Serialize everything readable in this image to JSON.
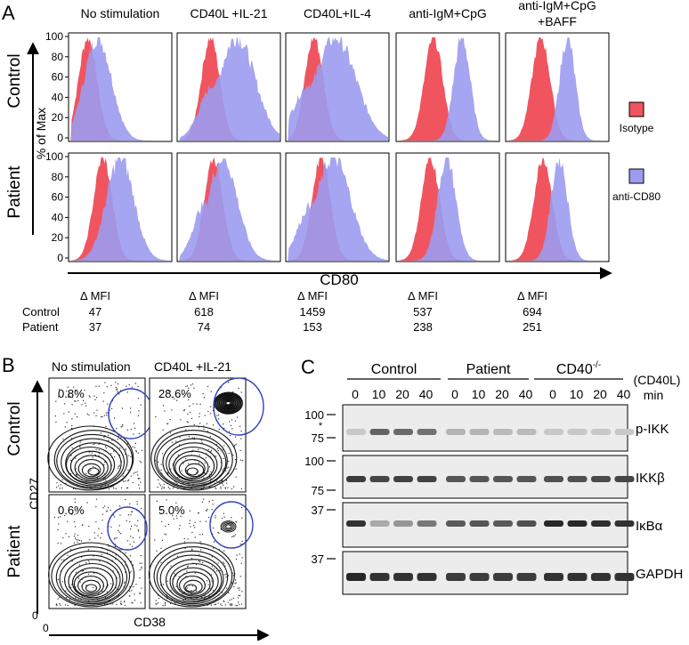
{
  "panel_a": {
    "letter": "A",
    "conditions": [
      "No stimulation",
      "CD40L +IL-21",
      "CD40L+IL-4",
      "anti-IgM+CpG",
      "anti-IgM+CpG\n+BAFF"
    ],
    "rows": [
      "Control",
      "Patient"
    ],
    "yaxis": "% of Max",
    "yticks": [
      "100",
      "80",
      "60",
      "40",
      "20",
      "0"
    ],
    "xaxis": "CD80",
    "legend": [
      {
        "label": "Isotype",
        "color": "#f0545f"
      },
      {
        "label": "anti-CD80",
        "color": "#9b9bef"
      }
    ],
    "mfi_header": "Δ MFI",
    "mfi_rows": [
      {
        "label": "Control",
        "values": [
          "47",
          "618",
          "1459",
          "537",
          "694"
        ]
      },
      {
        "label": "Patient",
        "values": [
          "37",
          "74",
          "153",
          "238",
          "251"
        ]
      }
    ],
    "profiles": {
      "isotype_peak": [
        0.18,
        0.32,
        0.27,
        0.36,
        0.34,
        0.33,
        0.35,
        0.34,
        0.33,
        0.36
      ],
      "cd80_peak": [
        0.28,
        0.58,
        0.48,
        0.64,
        0.6,
        0.5,
        0.44,
        0.46,
        0.49,
        0.52
      ],
      "cd80_width": [
        0.3,
        0.4,
        0.45,
        0.18,
        0.17,
        0.3,
        0.32,
        0.38,
        0.2,
        0.18
      ]
    }
  },
  "panel_b": {
    "letter": "B",
    "conditions": [
      "No stimulation",
      "CD40L +IL-21"
    ],
    "rows": [
      "Control",
      "Patient"
    ],
    "percents": [
      [
        "0.8%",
        "28.6%"
      ],
      [
        "0.6%",
        "5.0%"
      ]
    ],
    "yaxis": "CD27",
    "xaxis": "CD38",
    "origin_y": "0",
    "origin_x": "0"
  },
  "panel_c": {
    "letter": "C",
    "groups": [
      "Control",
      "Patient",
      "CD40-/-"
    ],
    "stim_label": "(CD40L)",
    "min_label": "min",
    "timepoints": [
      "0",
      "10",
      "20",
      "40",
      "0",
      "10",
      "20",
      "40",
      "0",
      "10",
      "20",
      "40"
    ],
    "blots": [
      {
        "name": "p-IKK",
        "markers": [
          "100",
          "*",
          "75"
        ]
      },
      {
        "name": "IKKβ",
        "markers": [
          "100",
          "75"
        ]
      },
      {
        "name": "IκBα",
        "markers": [
          "37"
        ]
      },
      {
        "name": "GAPDH",
        "markers": [
          "37"
        ]
      }
    ],
    "band_intensity": [
      [
        0.15,
        0.65,
        0.62,
        0.58,
        0.25,
        0.25,
        0.22,
        0.22,
        0.15,
        0.15,
        0.15,
        0.15
      ],
      [
        0.85,
        0.8,
        0.82,
        0.82,
        0.72,
        0.72,
        0.72,
        0.72,
        0.75,
        0.75,
        0.78,
        0.8
      ],
      [
        0.9,
        0.3,
        0.4,
        0.55,
        0.7,
        0.72,
        0.7,
        0.75,
        0.95,
        0.95,
        0.92,
        0.9
      ],
      [
        0.95,
        0.9,
        0.9,
        0.9,
        0.85,
        0.85,
        0.85,
        0.85,
        0.9,
        0.9,
        0.9,
        0.9
      ]
    ]
  }
}
